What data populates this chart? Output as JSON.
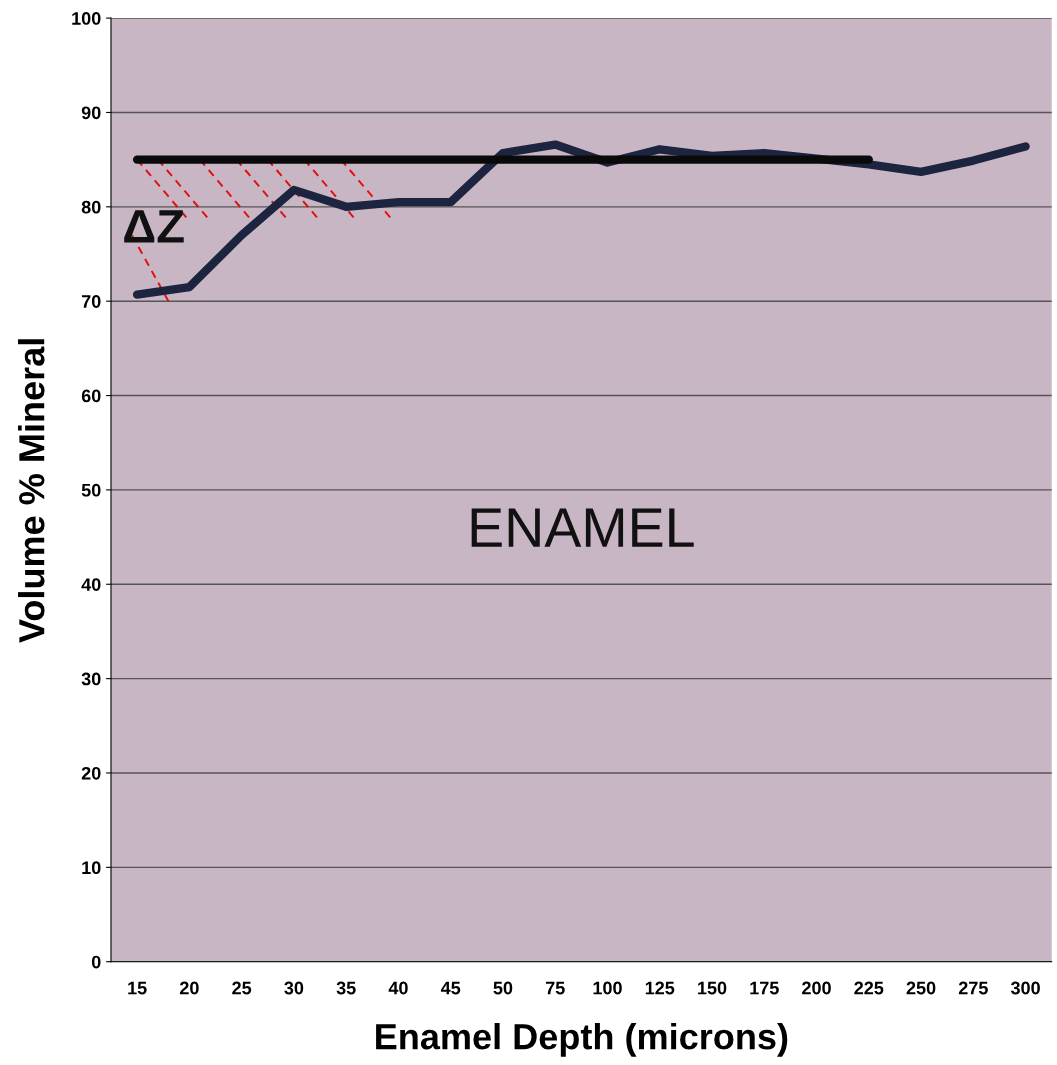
{
  "chart_data": {
    "type": "line",
    "xlabel": "Enamel Depth (microns)",
    "ylabel": "Volume % Mineral",
    "categories": [
      "15",
      "20",
      "25",
      "30",
      "35",
      "40",
      "45",
      "50",
      "75",
      "100",
      "125",
      "150",
      "175",
      "200",
      "225",
      "250",
      "275",
      "300"
    ],
    "series": [
      {
        "color": "#1c2440",
        "values": [
          70.7,
          71.5,
          77,
          81.8,
          80,
          80.5,
          80.5,
          85.7,
          86.6,
          84.7,
          86.1,
          85.4,
          85.7,
          85.1,
          84.5,
          83.7,
          84.9,
          86.4
        ]
      },
      {
        "color": "#0a0a0a",
        "values": [
          85,
          85,
          85,
          85,
          85,
          85,
          85,
          85,
          85,
          85,
          85,
          85,
          85,
          85,
          85,
          null,
          null,
          null
        ]
      }
    ],
    "annotations": [
      "ΔZ",
      "ENAMEL"
    ],
    "ylim": [
      0,
      100
    ],
    "yticks": [
      0,
      10,
      20,
      30,
      40,
      50,
      60,
      70,
      80,
      90,
      100
    ],
    "grid": "y",
    "legend": false,
    "marker": "none",
    "line_style": "solid"
  }
}
